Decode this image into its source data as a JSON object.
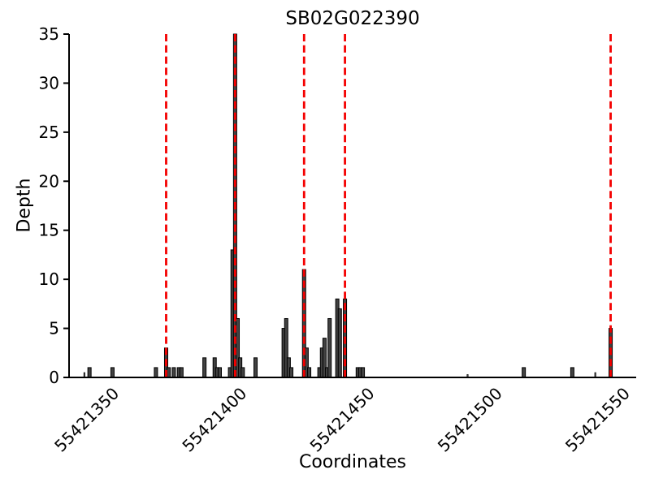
{
  "figure": {
    "title": "SB02G022390",
    "xlabel": "Coordinates",
    "ylabel": "Depth"
  },
  "chart_data": {
    "type": "bar",
    "title": "SB02G022390",
    "xlabel": "Coordinates",
    "ylabel": "Depth",
    "xlim": [
      55421332,
      55421554
    ],
    "ylim": [
      0,
      35
    ],
    "yticks": [
      0,
      5,
      10,
      15,
      20,
      25,
      30,
      35
    ],
    "xticks": [
      {
        "label": "55421350",
        "value": 55421350
      },
      {
        "label": "55421400",
        "value": 55421400
      },
      {
        "label": "55421450",
        "value": 55421450
      },
      {
        "label": "55421500",
        "value": 55421500
      },
      {
        "label": "55421550",
        "value": 55421550
      }
    ],
    "grid": false,
    "legend": null,
    "bar_color": "#424242",
    "bar_edge_color": "#000000",
    "axis_color": "#000000",
    "vline_color": "#f40000",
    "vline_style": "dashed",
    "vlines": [
      55421370,
      55421397,
      55421424,
      55421440,
      55421544
    ],
    "bars": [
      {
        "x": 55421338,
        "depth": 0.5,
        "narrow": true
      },
      {
        "x": 55421340,
        "depth": 1
      },
      {
        "x": 55421349,
        "depth": 1
      },
      {
        "x": 55421366,
        "depth": 1
      },
      {
        "x": 55421370,
        "depth": 3
      },
      {
        "x": 55421371,
        "depth": 1
      },
      {
        "x": 55421373,
        "depth": 1
      },
      {
        "x": 55421375,
        "depth": 1
      },
      {
        "x": 55421376,
        "depth": 1
      },
      {
        "x": 55421385,
        "depth": 2
      },
      {
        "x": 55421389,
        "depth": 2
      },
      {
        "x": 55421390,
        "depth": 1
      },
      {
        "x": 55421391,
        "depth": 1
      },
      {
        "x": 55421395,
        "depth": 1
      },
      {
        "x": 55421396,
        "depth": 13
      },
      {
        "x": 55421397,
        "depth": 35
      },
      {
        "x": 55421398,
        "depth": 6
      },
      {
        "x": 55421399,
        "depth": 2
      },
      {
        "x": 55421400,
        "depth": 1
      },
      {
        "x": 55421405,
        "depth": 2
      },
      {
        "x": 55421416,
        "depth": 5
      },
      {
        "x": 55421417,
        "depth": 6
      },
      {
        "x": 55421418,
        "depth": 2
      },
      {
        "x": 55421419,
        "depth": 1
      },
      {
        "x": 55421424,
        "depth": 11
      },
      {
        "x": 55421425,
        "depth": 3
      },
      {
        "x": 55421426,
        "depth": 1
      },
      {
        "x": 55421430,
        "depth": 1
      },
      {
        "x": 55421431,
        "depth": 3
      },
      {
        "x": 55421432,
        "depth": 4
      },
      {
        "x": 55421433,
        "depth": 1
      },
      {
        "x": 55421434,
        "depth": 6
      },
      {
        "x": 55421437,
        "depth": 8
      },
      {
        "x": 55421438,
        "depth": 7
      },
      {
        "x": 55421440,
        "depth": 8
      },
      {
        "x": 55421445,
        "depth": 1
      },
      {
        "x": 55421446,
        "depth": 1
      },
      {
        "x": 55421447,
        "depth": 1
      },
      {
        "x": 55421488,
        "depth": 0.3,
        "narrow": true
      },
      {
        "x": 55421510,
        "depth": 1
      },
      {
        "x": 55421529,
        "depth": 1
      },
      {
        "x": 55421538,
        "depth": 0.5,
        "narrow": true
      },
      {
        "x": 55421544,
        "depth": 5
      }
    ]
  }
}
